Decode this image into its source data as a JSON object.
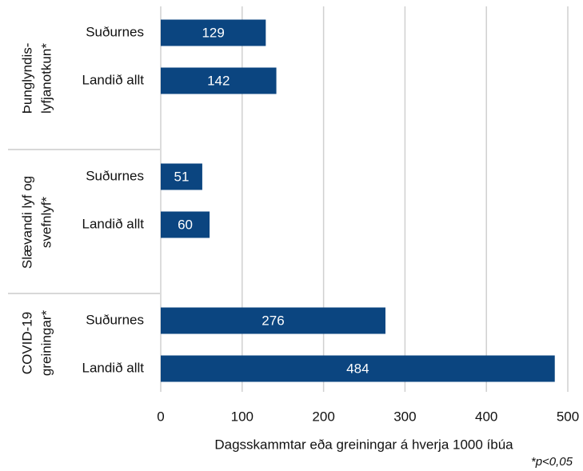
{
  "chart_data": {
    "type": "bar",
    "orientation": "horizontal",
    "groups": [
      {
        "label": [
          "Þunglyndis-",
          "lyfjanotkun*"
        ],
        "categories": [
          "Suðurnes",
          "Landið allt"
        ],
        "values": [
          129,
          142
        ]
      },
      {
        "label": [
          "Slævandi lyf og",
          "svefnlyf*"
        ],
        "categories": [
          "Suðurnes",
          "Landið allt"
        ],
        "values": [
          51,
          60
        ]
      },
      {
        "label": [
          "COVID-19",
          "greiningar*"
        ],
        "categories": [
          "Suðurnes",
          "Landið allt"
        ],
        "values": [
          276,
          484
        ]
      }
    ],
    "color": "#0b4580",
    "xlim": [
      0,
      500
    ],
    "xticks": [
      0,
      100,
      200,
      300,
      400,
      500
    ],
    "grid": true,
    "xlabel": "Dagsskammtar eða greiningar á hverja 1000 íbúa",
    "annotation": "*p<0,05"
  }
}
